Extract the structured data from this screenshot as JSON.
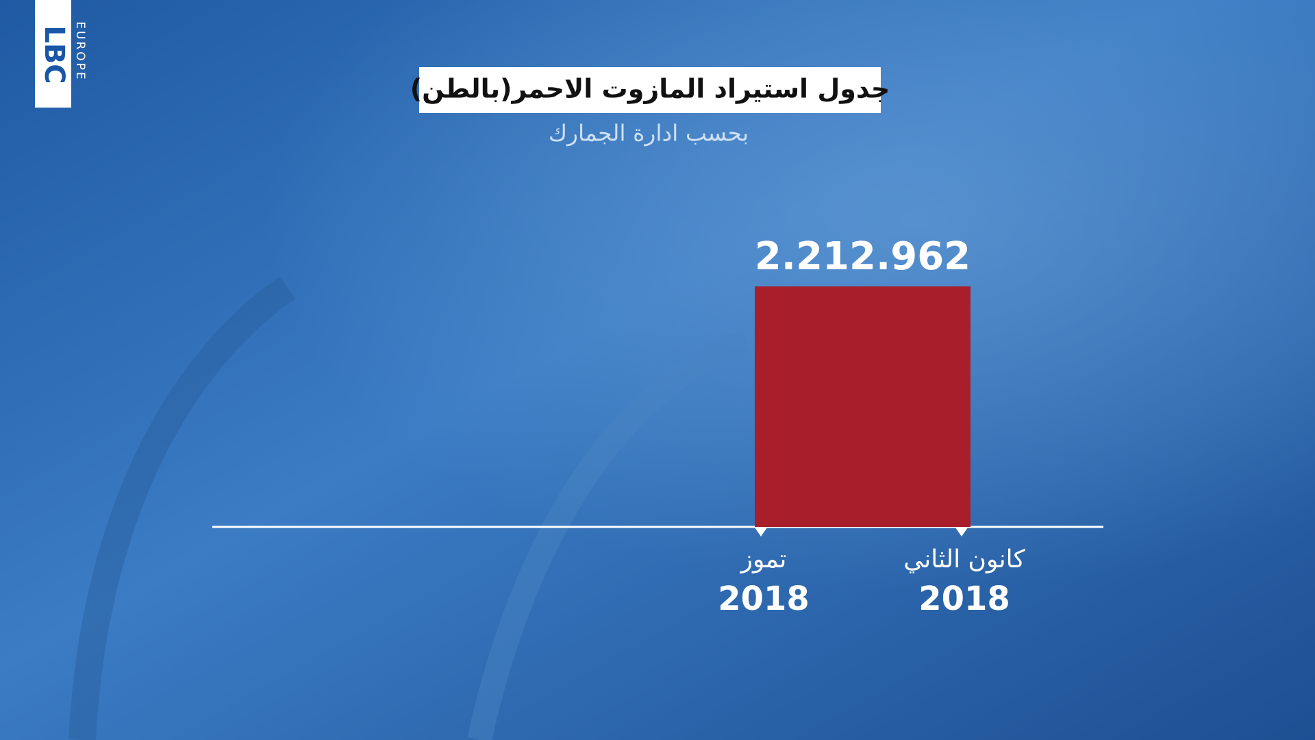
{
  "logo": {
    "name": "LBC",
    "region": "EUROPE"
  },
  "chart_data": {
    "type": "bar",
    "title": "جدول استيراد المازوت الاحمر(بالطن)",
    "subtitle": "بحسب ادارة الجمارك",
    "categories": [
      {
        "month": "تموز",
        "year": "2018"
      },
      {
        "month": "كانون الثاني",
        "year": "2018"
      }
    ],
    "values": [
      2212962,
      null
    ],
    "value_labels": [
      "2.212.962",
      null
    ],
    "color": "#a81e2b"
  }
}
